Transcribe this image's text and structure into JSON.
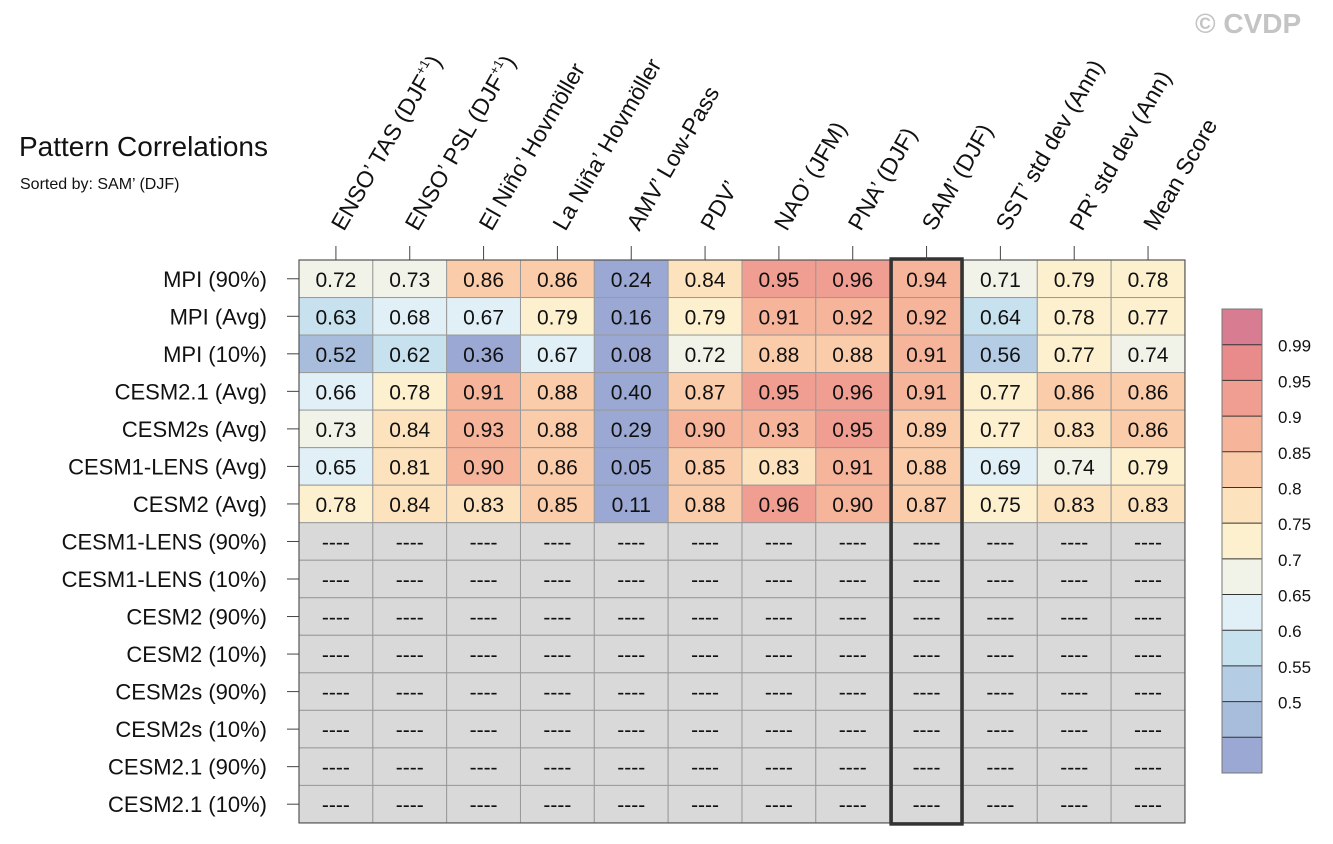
{
  "header": {
    "title": "Pattern Correlations",
    "subtitle": "Sorted by: SAM’ (DJF)",
    "copyright": "© CVDP"
  },
  "colors": {
    "missing_cell": "#d9d9d9",
    "grid_line": "#9a9a9a",
    "highlight_border": "#333333",
    "colorbar_bins": [
      "#9aa8d3",
      "#a8bcdb",
      "#b5cde4",
      "#c8e1ee",
      "#e1f0f6",
      "#f2f3e8",
      "#fdf0cf",
      "#fde3bd",
      "#fbcca9",
      "#f6b49a",
      "#f09e91",
      "#e98b8b",
      "#d87c92"
    ]
  },
  "chart_data": {
    "type": "heatmap",
    "title": "Pattern Correlations",
    "subtitle": "Sorted by: SAM’ (DJF)",
    "columns": [
      {
        "main": "ENSO’ TAS (DJF",
        "sup": "+1",
        "tail": ")"
      },
      {
        "main": "ENSO’ PSL (DJF",
        "sup": "+1",
        "tail": ")"
      },
      {
        "main": "El Niño’ Hovmöller",
        "sup": "",
        "tail": ""
      },
      {
        "main": "La Niña’ Hovmöller",
        "sup": "",
        "tail": ""
      },
      {
        "main": "AMV’ Low-Pass",
        "sup": "",
        "tail": ""
      },
      {
        "main": "PDV’",
        "sup": "",
        "tail": ""
      },
      {
        "main": "NAO’ (JFM)",
        "sup": "",
        "tail": ""
      },
      {
        "main": "PNA’ (DJF)",
        "sup": "",
        "tail": ""
      },
      {
        "main": "SAM’ (DJF)",
        "sup": "",
        "tail": ""
      },
      {
        "main": "SST’ std dev (Ann)",
        "sup": "",
        "tail": ""
      },
      {
        "main": "PR’ std dev (Ann)",
        "sup": "",
        "tail": ""
      },
      {
        "main": "Mean Score",
        "sup": "",
        "tail": ""
      }
    ],
    "rows": [
      "MPI (90%)",
      "MPI (Avg)",
      "MPI (10%)",
      "CESM2.1 (Avg)",
      "CESM2s (Avg)",
      "CESM1-LENS (Avg)",
      "CESM2 (Avg)",
      "CESM1-LENS (90%)",
      "CESM1-LENS (10%)",
      "CESM2 (90%)",
      "CESM2 (10%)",
      "CESM2s (90%)",
      "CESM2s (10%)",
      "CESM2.1 (90%)",
      "CESM2.1 (10%)"
    ],
    "values": [
      [
        "0.72",
        "0.73",
        "0.86",
        "0.86",
        "0.24",
        "0.84",
        "0.95",
        "0.96",
        "0.94",
        "0.71",
        "0.79",
        "0.78"
      ],
      [
        "0.63",
        "0.68",
        "0.67",
        "0.79",
        "0.16",
        "0.79",
        "0.91",
        "0.92",
        "0.92",
        "0.64",
        "0.78",
        "0.77"
      ],
      [
        "0.52",
        "0.62",
        "0.36",
        "0.67",
        "0.08",
        "0.72",
        "0.88",
        "0.88",
        "0.91",
        "0.56",
        "0.77",
        "0.74"
      ],
      [
        "0.66",
        "0.78",
        "0.91",
        "0.88",
        "0.40",
        "0.87",
        "0.95",
        "0.96",
        "0.91",
        "0.77",
        "0.86",
        "0.86"
      ],
      [
        "0.73",
        "0.84",
        "0.93",
        "0.88",
        "0.29",
        "0.90",
        "0.93",
        "0.95",
        "0.89",
        "0.77",
        "0.83",
        "0.86"
      ],
      [
        "0.65",
        "0.81",
        "0.90",
        "0.86",
        "0.05",
        "0.85",
        "0.83",
        "0.91",
        "0.88",
        "0.69",
        "0.74",
        "0.79"
      ],
      [
        "0.78",
        "0.84",
        "0.83",
        "0.85",
        "0.11",
        "0.88",
        "0.96",
        "0.90",
        "0.87",
        "0.75",
        "0.83",
        "0.83"
      ],
      [
        "----",
        "----",
        "----",
        "----",
        "----",
        "----",
        "----",
        "----",
        "----",
        "----",
        "----",
        "----"
      ],
      [
        "----",
        "----",
        "----",
        "----",
        "----",
        "----",
        "----",
        "----",
        "----",
        "----",
        "----",
        "----"
      ],
      [
        "----",
        "----",
        "----",
        "----",
        "----",
        "----",
        "----",
        "----",
        "----",
        "----",
        "----",
        "----"
      ],
      [
        "----",
        "----",
        "----",
        "----",
        "----",
        "----",
        "----",
        "----",
        "----",
        "----",
        "----",
        "----"
      ],
      [
        "----",
        "----",
        "----",
        "----",
        "----",
        "----",
        "----",
        "----",
        "----",
        "----",
        "----",
        "----"
      ],
      [
        "----",
        "----",
        "----",
        "----",
        "----",
        "----",
        "----",
        "----",
        "----",
        "----",
        "----",
        "----"
      ],
      [
        "----",
        "----",
        "----",
        "----",
        "----",
        "----",
        "----",
        "----",
        "----",
        "----",
        "----",
        "----"
      ],
      [
        "----",
        "----",
        "----",
        "----",
        "----",
        "----",
        "----",
        "----",
        "----",
        "----",
        "----",
        "----"
      ]
    ],
    "highlight_column": "SAM’ (DJF)",
    "colorbar": {
      "boundaries": [
        0.5,
        0.55,
        0.6,
        0.65,
        0.7,
        0.75,
        0.8,
        0.85,
        0.9,
        0.95,
        0.99
      ],
      "labels": [
        "0.99",
        "0.95",
        "0.9",
        "0.85",
        "0.8",
        "0.75",
        "0.7",
        "0.65",
        "0.6",
        "0.55",
        "0.5"
      ]
    }
  }
}
